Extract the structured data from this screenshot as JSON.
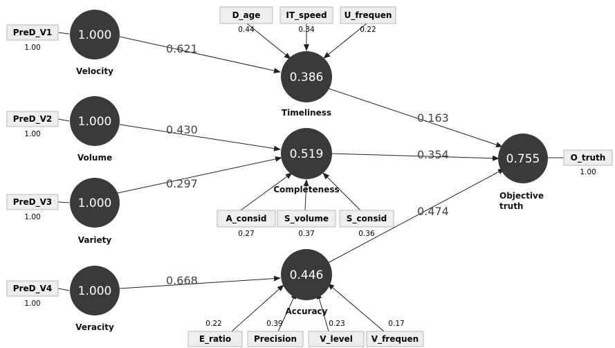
{
  "colors": {
    "node_fill": "#3a3a3a",
    "node_text": "#ffffff",
    "indicator_fill": "#eeeeee",
    "indicator_border": "#b9b9b9",
    "line": "#222222"
  },
  "constructs": [
    {
      "id": "velocity",
      "label": "Velocity",
      "value": "1.000"
    },
    {
      "id": "volume",
      "label": "Volume",
      "value": "1.000"
    },
    {
      "id": "variety",
      "label": "Variety",
      "value": "1.000"
    },
    {
      "id": "veracity",
      "label": "Veracity",
      "value": "1.000"
    },
    {
      "id": "timeliness",
      "label": "Timeliness",
      "value": "0.386"
    },
    {
      "id": "completeness",
      "label": "Completeness",
      "value": "0.519"
    },
    {
      "id": "accuracy",
      "label": "Accuracy",
      "value": "0.446"
    },
    {
      "id": "objective",
      "label_lines": [
        "Objective",
        "truth"
      ],
      "value": "0.755"
    }
  ],
  "indicators": [
    {
      "id": "pred_v1",
      "name": "PreD_V1",
      "value": "1.00"
    },
    {
      "id": "pred_v2",
      "name": "PreD_V2",
      "value": "1.00"
    },
    {
      "id": "pred_v3",
      "name": "PreD_V3",
      "value": "1.00"
    },
    {
      "id": "pred_v4",
      "name": "PreD_V4",
      "value": "1.00"
    },
    {
      "id": "d_age",
      "name": "D_age",
      "value": "0.44"
    },
    {
      "id": "it_speed",
      "name": "IT_speed",
      "value": "0.34"
    },
    {
      "id": "u_frequen",
      "name": "U_frequen",
      "value": "0.22"
    },
    {
      "id": "a_consid",
      "name": "A_consid",
      "value": "0.27"
    },
    {
      "id": "s_volume",
      "name": "S_volume",
      "value": "0.37"
    },
    {
      "id": "s_consid",
      "name": "S_consid",
      "value": "0.36"
    },
    {
      "id": "e_ratio",
      "name": "E_ratio",
      "value": "0.22"
    },
    {
      "id": "precision",
      "name": "Precision",
      "value": "0.39"
    },
    {
      "id": "v_level",
      "name": "V_level",
      "value": "0.23"
    },
    {
      "id": "v_frequen",
      "name": "V_frequen",
      "value": "0.17"
    },
    {
      "id": "o_truth",
      "name": "O_truth",
      "value": "1.00"
    }
  ],
  "paths": [
    {
      "from": "velocity",
      "to": "timeliness",
      "coefficient": "0.621"
    },
    {
      "from": "volume",
      "to": "completeness",
      "coefficient": "0.430"
    },
    {
      "from": "variety",
      "to": "completeness",
      "coefficient": "0.297"
    },
    {
      "from": "veracity",
      "to": "accuracy",
      "coefficient": "0.668"
    },
    {
      "from": "timeliness",
      "to": "objective",
      "coefficient": "0.163"
    },
    {
      "from": "completeness",
      "to": "objective",
      "coefficient": "0.354"
    },
    {
      "from": "accuracy",
      "to": "objective",
      "coefficient": "0.474"
    }
  ]
}
